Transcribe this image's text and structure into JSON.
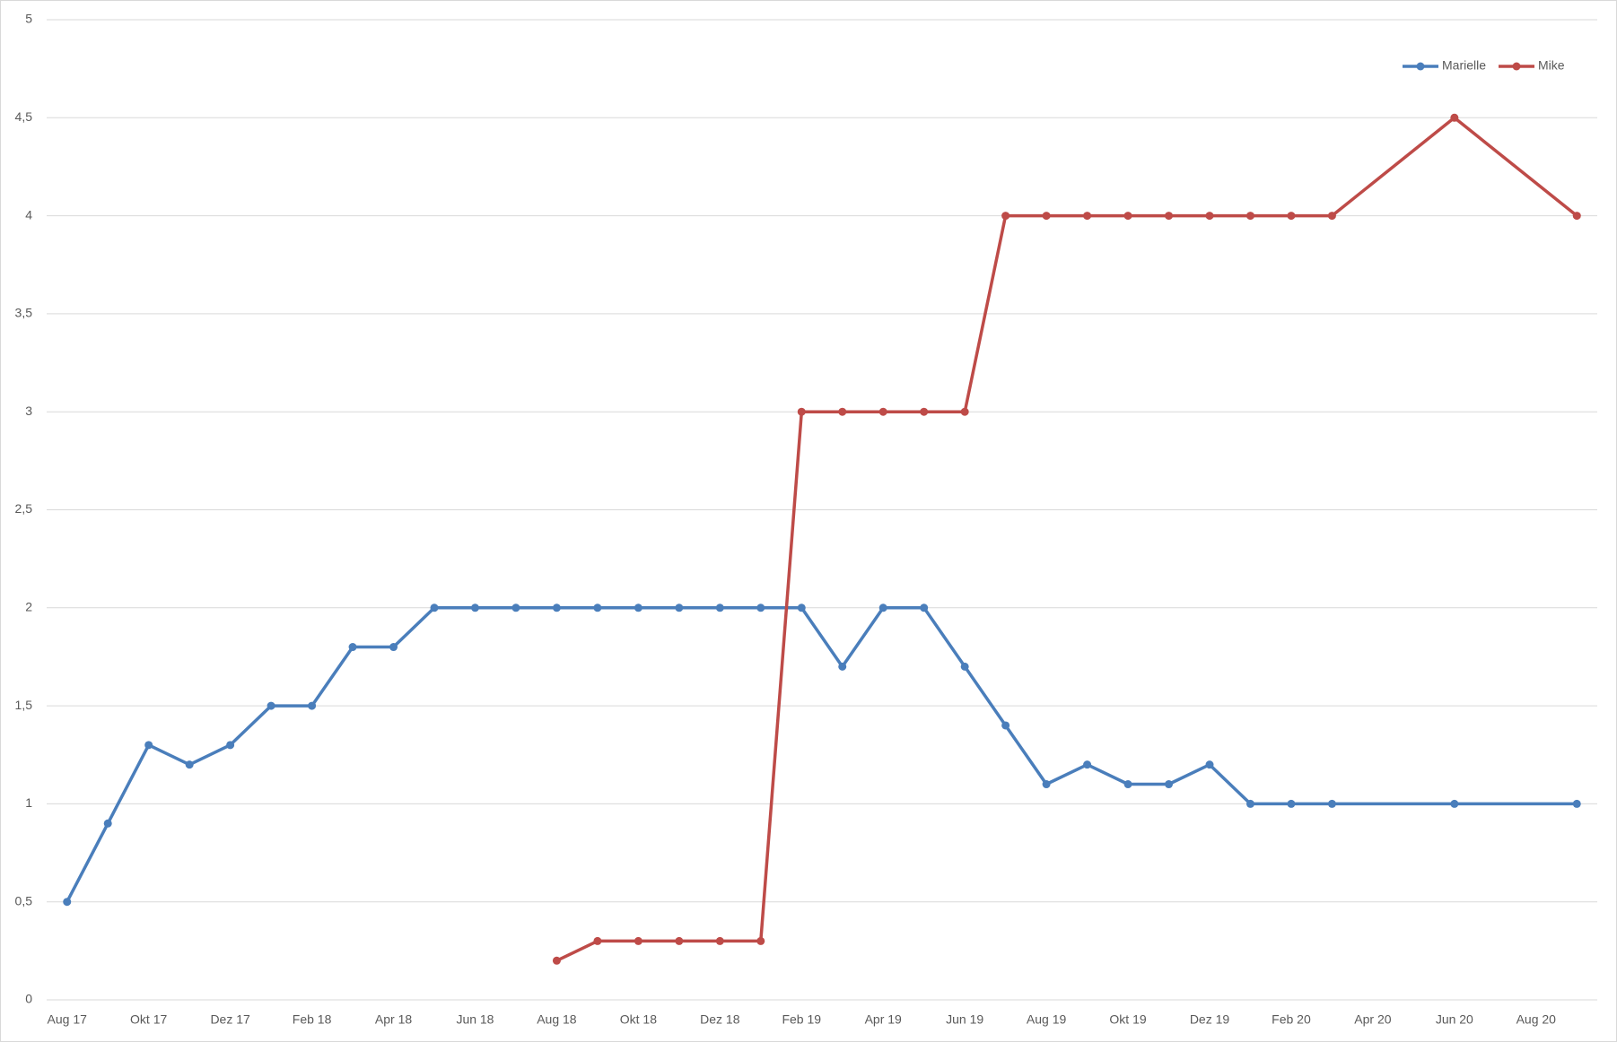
{
  "chart_data": {
    "type": "line",
    "categories": [
      "Aug 17",
      null,
      "Okt 17",
      null,
      "Dez 17",
      null,
      "Feb 18",
      null,
      "Apr 18",
      null,
      "Jun 18",
      null,
      "Aug 18",
      null,
      "Okt 18",
      null,
      "Dez 18",
      null,
      "Feb 19",
      null,
      "Apr 19",
      null,
      "Jun 19",
      null,
      "Aug 19",
      null,
      "Okt 19",
      null,
      "Dez 19",
      null,
      "Feb 20",
      null,
      "Apr 20",
      null,
      "Jun 20",
      null,
      "Aug 20",
      null
    ],
    "series": [
      {
        "name": "Marielle",
        "color": "#4a7ebb",
        "values": [
          0.5,
          0.9,
          1.3,
          1.2,
          1.3,
          1.5,
          1.5,
          1.8,
          1.8,
          2,
          2,
          2,
          2,
          2,
          2,
          2,
          2,
          2,
          2,
          1.7,
          2,
          2,
          1.7,
          1.4,
          1.1,
          1.2,
          1.1,
          1.1,
          1.2,
          1,
          1,
          1,
          null,
          null,
          1,
          null,
          null,
          1
        ]
      },
      {
        "name": "Mike",
        "color": "#be4b48",
        "values": [
          null,
          null,
          null,
          null,
          null,
          null,
          null,
          null,
          null,
          null,
          null,
          null,
          0.2,
          0.3,
          0.3,
          0.3,
          0.3,
          0.3,
          3,
          3,
          3,
          3,
          3,
          4,
          4,
          4,
          4,
          4,
          4,
          4,
          4,
          4,
          null,
          null,
          4.5,
          null,
          null,
          4
        ]
      }
    ],
    "ylim": [
      0,
      5
    ],
    "yticks": [
      0,
      {
        "value": 0.5,
        "label": "0,5"
      },
      1,
      {
        "value": 1.5,
        "label": "1,5"
      },
      2,
      {
        "value": 2.5,
        "label": "2,5"
      },
      3,
      {
        "value": 3.5,
        "label": "3,5"
      },
      4,
      {
        "value": 4.5,
        "label": "4,5"
      },
      5
    ],
    "grid": true,
    "connect_gaps": true,
    "legend": "top-right"
  }
}
